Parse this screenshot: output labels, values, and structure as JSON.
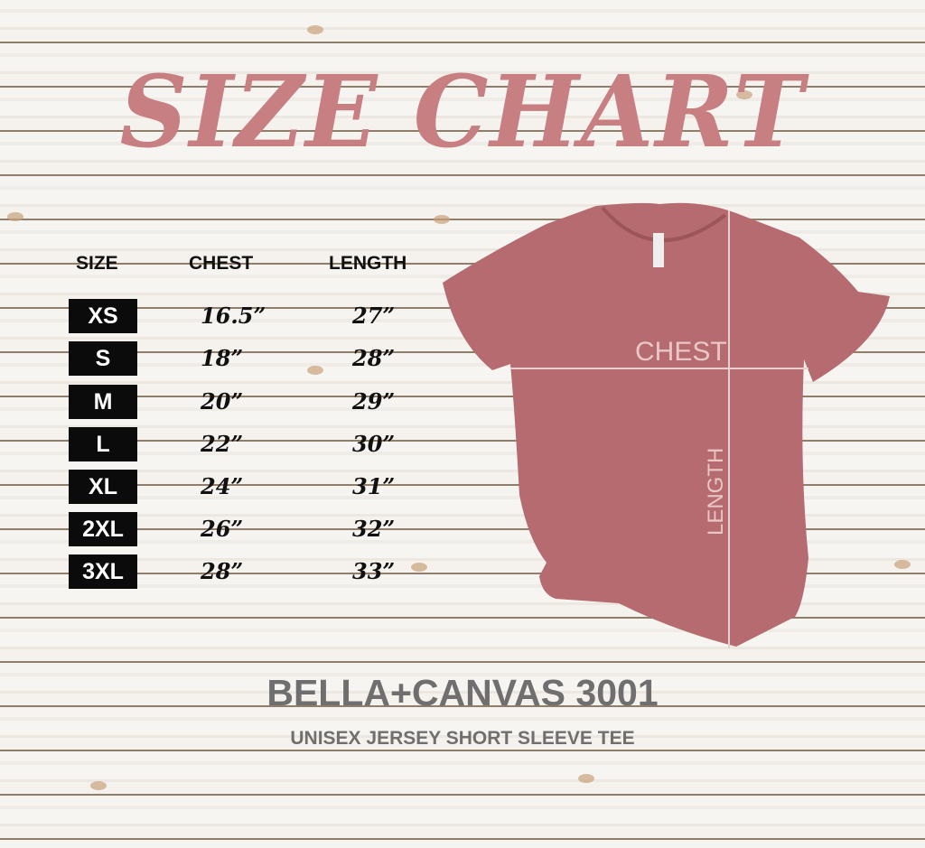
{
  "title": "SIZE CHART",
  "table": {
    "headers": [
      "SIZE",
      "CHEST",
      "LENGTH"
    ],
    "rows": [
      {
        "size": "XS",
        "chest": "16.5”",
        "length": "27”"
      },
      {
        "size": "S",
        "chest": "18”",
        "length": "28”"
      },
      {
        "size": "M",
        "chest": "20”",
        "length": "29”"
      },
      {
        "size": "L",
        "chest": "22”",
        "length": "30”"
      },
      {
        "size": "XL",
        "chest": "24”",
        "length": "31”"
      },
      {
        "size": "2XL",
        "chest": "26”",
        "length": "32”"
      },
      {
        "size": "3XL",
        "chest": "28”",
        "length": "33”"
      }
    ]
  },
  "shirt": {
    "chest_label": "CHEST",
    "length_label": "LENGTH",
    "color": "#b56b6f"
  },
  "brand": "BELLA+CANVAS 3001",
  "subtitle": "UNISEX JERSEY SHORT SLEEVE TEE",
  "colors": {
    "title": "#c77f82",
    "brand_text": "#6f6f6f",
    "size_box": "#0b0b0b"
  }
}
